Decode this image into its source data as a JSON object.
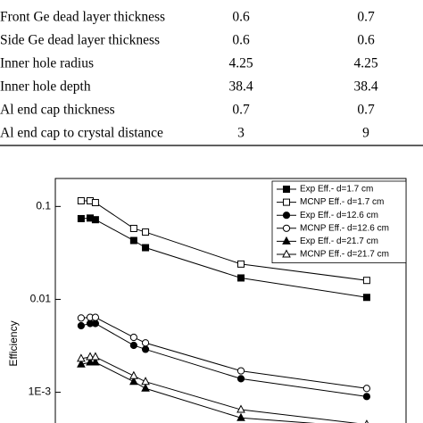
{
  "table": {
    "rows": [
      [
        "Front Ge dead layer thickness",
        "0.6",
        "0.7"
      ],
      [
        "Side Ge dead layer thickness",
        "0.6",
        "0.6"
      ],
      [
        "Inner hole radius",
        "4.25",
        "4.25"
      ],
      [
        "Inner hole depth",
        "38.4",
        "38.4"
      ],
      [
        "Al end cap thickness",
        "0.7",
        "0.7"
      ],
      [
        "Al end cap to crystal distance",
        "3",
        "9"
      ]
    ]
  },
  "chart_data": {
    "type": "line",
    "y_label": "Efficiency",
    "log_y": true,
    "x": [
      103,
      139,
      160,
      313,
      360,
      741,
      1243
    ],
    "xlim": [
      0,
      1400
    ],
    "ylim": [
      0.0004,
      0.2
    ],
    "yticks": [
      0.1,
      0.01,
      {
        "value": 0.001,
        "label": "1E-3"
      }
    ],
    "legend": "upper right",
    "series": [
      {
        "name": "Exp Eff.- d=1.7 cm",
        "color": "#000000",
        "marker": "square",
        "filled": true,
        "values": [
          0.074,
          0.075,
          0.072,
          0.043,
          0.036,
          0.017,
          0.0105
        ]
      },
      {
        "name": "MCNP Eff.- d=1.7 cm",
        "color": "#000000",
        "marker": "square",
        "filled": false,
        "values": [
          0.115,
          0.115,
          0.11,
          0.058,
          0.053,
          0.024,
          0.016
        ]
      },
      {
        "name": "Exp Eff.- d=12.6 cm",
        "color": "#000000",
        "marker": "circle",
        "filled": true,
        "values": [
          0.0052,
          0.0055,
          0.0055,
          0.0032,
          0.0029,
          0.0014,
          0.0009
        ]
      },
      {
        "name": "MCNP Eff.- d=12.6 cm",
        "color": "#000000",
        "marker": "circle",
        "filled": false,
        "values": [
          0.0063,
          0.0064,
          0.0064,
          0.0039,
          0.0034,
          0.0017,
          0.0011
        ]
      },
      {
        "name": "Exp Eff.- d=21.7 cm",
        "color": "#000000",
        "marker": "triangle",
        "filled": true,
        "values": [
          0.002,
          0.0021,
          0.0021,
          0.0013,
          0.0011,
          0.00053,
          0.00042
        ]
      },
      {
        "name": "MCNP Eff.- d=21.7 cm",
        "color": "#000000",
        "marker": "triangle",
        "filled": false,
        "values": [
          0.0023,
          0.0024,
          0.0024,
          0.0015,
          0.0013,
          0.00065,
          0.00045
        ]
      }
    ]
  }
}
